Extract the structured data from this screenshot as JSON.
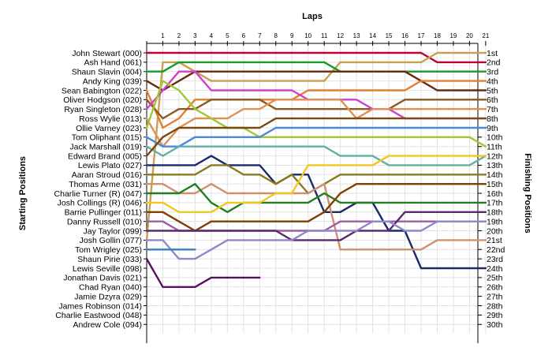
{
  "chart_data": {
    "type": "line",
    "title": "",
    "xlabel": "Laps",
    "ylabel_left": "Starting Positions",
    "ylabel_right": "Finishing Positions",
    "x_ticks": [
      "1",
      "2",
      "3",
      "4",
      "5",
      "6",
      "7",
      "8",
      "9",
      "10",
      "11",
      "12",
      "13",
      "14",
      "15",
      "16",
      "17",
      "18",
      "19",
      "20",
      "21"
    ],
    "xlim": [
      0,
      21
    ],
    "ylim": [
      1,
      30
    ],
    "grid": true,
    "starting_positions": [
      "John Stewart (000)",
      "Ash Hand (061)",
      "Shaun Slavin (004)",
      "Andy King (039)",
      "Sean Babington (022)",
      "Oliver Hodgson (020)",
      "Ryan Singleton (028)",
      "Ross Wylie (013)",
      "Ollie Varney (023)",
      "Tom Oliphant (015)",
      "Jack Marshall (019)",
      "Edward Brand (005)",
      "Lewis Plato (027)",
      "Aaran Stroud (016)",
      "Thomas Arme (031)",
      "Charlie Turner (R) (047)",
      "Josh Collings (R) (046)",
      "Barrie Pullinger (011)",
      "Danny Russell (010)",
      "Jay Taylor (099)",
      "Josh Gollin (077)",
      "Tom Wrigley (025)",
      "Shaun Pirie (033)",
      "Lewis Seville (098)",
      "Jonathan Davis (021)",
      "Chad Ryan (040)",
      "Jamie Dzyra (029)",
      "James Robinson (014)",
      "Charlie Eastwood (048)",
      "Andrew Cole (094)"
    ],
    "finishing_positions": [
      "1st",
      "2nd",
      "3rd",
      "4th",
      "5th",
      "6th",
      "7th",
      "8th",
      "9th",
      "10th",
      "11th",
      "12th",
      "13th",
      "14th",
      "15th",
      "16th",
      "17th",
      "18th",
      "19th",
      "20th",
      "21st",
      "22nd",
      "23rd",
      "24th",
      "25th",
      "26th",
      "27th",
      "28th",
      "29th",
      "30th"
    ],
    "series": [
      {
        "color": "#c0003c",
        "values": [
          1,
          1,
          1,
          1,
          1,
          1,
          1,
          1,
          1,
          1,
          1,
          1,
          1,
          1,
          1,
          1,
          1,
          1,
          2,
          2,
          2,
          2
        ]
      },
      {
        "color": "#c8a050",
        "values": [
          21,
          2,
          2,
          3,
          4,
          4,
          4,
          4,
          4,
          4,
          4,
          4,
          2,
          2,
          2,
          2,
          2,
          2,
          1,
          1,
          1,
          1
        ]
      },
      {
        "color": "#1a9a2a",
        "values": [
          3,
          3,
          2,
          2,
          2,
          2,
          2,
          2,
          2,
          2,
          2,
          2,
          3,
          3,
          3,
          3,
          3,
          3,
          3,
          3,
          3,
          3
        ]
      },
      {
        "color": "#6a2a10",
        "values": [
          4,
          5,
          4,
          3,
          3,
          3,
          3,
          3,
          3,
          3,
          3,
          3,
          3,
          3,
          3,
          3,
          3,
          4,
          5,
          5,
          5,
          5
        ]
      },
      {
        "color": "#e08030",
        "values": [
          5,
          9,
          8,
          6,
          6,
          6,
          6,
          6,
          6,
          6,
          5,
          5,
          5,
          5,
          5,
          5,
          5,
          4,
          4,
          4,
          4,
          4
        ]
      },
      {
        "color": "#8a5a20",
        "values": [
          6,
          8,
          7,
          7,
          6,
          6,
          6,
          6,
          7,
          7,
          7,
          7,
          7,
          7,
          7,
          7,
          6,
          6,
          6,
          6,
          6,
          6
        ]
      },
      {
        "color": "#d040d0",
        "values": [
          7,
          5,
          3,
          3,
          5,
          5,
          5,
          5,
          5,
          5,
          6,
          6,
          6,
          6,
          7,
          7,
          8,
          8,
          8,
          8,
          8,
          8
        ]
      },
      {
        "color": "#e09050",
        "values": [
          8,
          11,
          9,
          8,
          8,
          8,
          7,
          7,
          6,
          6,
          6,
          6,
          6,
          8,
          7,
          7,
          7,
          7,
          7,
          7,
          7,
          7
        ]
      },
      {
        "color": "#a0c830",
        "values": [
          9,
          4,
          5,
          7,
          8,
          9,
          9,
          10,
          10,
          10,
          10,
          10,
          10,
          10,
          10,
          10,
          10,
          10,
          10,
          10,
          10,
          11
        ]
      },
      {
        "color": "#4a8ad8",
        "values": [
          10,
          11,
          11,
          10,
          10,
          10,
          10,
          10,
          9,
          9,
          9,
          9,
          9,
          9,
          9,
          9,
          9,
          9,
          9,
          9,
          9,
          9
        ]
      },
      {
        "color": "#60b0a8",
        "values": [
          11,
          12,
          11,
          11,
          11,
          11,
          11,
          11,
          11,
          11,
          11,
          11,
          12,
          12,
          12,
          13,
          13,
          13,
          13,
          13,
          13,
          12
        ]
      },
      {
        "color": "#7a4a10",
        "values": [
          12,
          10,
          9,
          9,
          9,
          9,
          9,
          9,
          8,
          8,
          8,
          8,
          8,
          8,
          8,
          8,
          8,
          8,
          8,
          8,
          8,
          8
        ]
      },
      {
        "color": "#1a2a6a",
        "values": [
          13,
          13,
          13,
          13,
          12,
          13,
          13,
          13,
          15,
          14,
          14,
          18,
          18,
          17,
          17,
          20,
          20,
          24,
          24,
          24,
          24,
          24
        ]
      },
      {
        "color": "#8a7a20",
        "values": [
          14,
          14,
          14,
          14,
          13,
          13,
          14,
          14,
          15,
          14,
          16,
          15,
          14,
          14,
          14,
          14,
          14,
          14,
          14,
          14,
          14,
          14
        ]
      },
      {
        "color": "#d09070",
        "values": [
          15,
          15,
          16,
          16,
          15,
          16,
          16,
          16,
          16,
          16,
          16,
          15,
          22,
          22,
          22,
          22,
          22,
          22,
          21,
          21,
          21,
          21
        ]
      },
      {
        "color": "#208020",
        "values": [
          16,
          16,
          16,
          15,
          17,
          18,
          17,
          17,
          17,
          17,
          17,
          16,
          17,
          17,
          17,
          17,
          17,
          17,
          17,
          17,
          17,
          17
        ]
      },
      {
        "color": "#f0c820",
        "values": [
          17,
          17,
          18,
          18,
          18,
          17,
          17,
          17,
          16,
          16,
          13,
          13,
          13,
          13,
          13,
          12,
          12,
          12,
          12,
          12,
          12,
          12
        ]
      },
      {
        "color": "#804000",
        "values": [
          18,
          18,
          19,
          20,
          19,
          19,
          19,
          19,
          19,
          19,
          19,
          18,
          16,
          15,
          15,
          15,
          15,
          15,
          15,
          15,
          15,
          15
        ]
      },
      {
        "color": "#9a60a0",
        "values": [
          19,
          19,
          20,
          20,
          20,
          20,
          20,
          20,
          20,
          20,
          20,
          20,
          19,
          19,
          19,
          19,
          19,
          19,
          19,
          19,
          19,
          19
        ]
      },
      {
        "color": "#5a2a70",
        "values": [
          20,
          20,
          20,
          20,
          20,
          20,
          20,
          20,
          20,
          21,
          21,
          21,
          21,
          20,
          20,
          20,
          18,
          18,
          18,
          18,
          18,
          18
        ]
      },
      {
        "color": "#9088c8",
        "values": [
          21,
          21,
          23,
          23,
          22,
          21,
          21,
          21,
          21,
          21,
          20,
          20,
          20,
          20,
          19,
          19,
          20,
          20,
          19,
          19,
          19,
          19
        ]
      },
      {
        "color": "#3a80c0",
        "values": [
          22,
          22,
          22,
          22
        ]
      },
      {
        "color": "#5a1060",
        "values": [
          23,
          26,
          26,
          26,
          25,
          25,
          25,
          25
        ]
      }
    ]
  }
}
